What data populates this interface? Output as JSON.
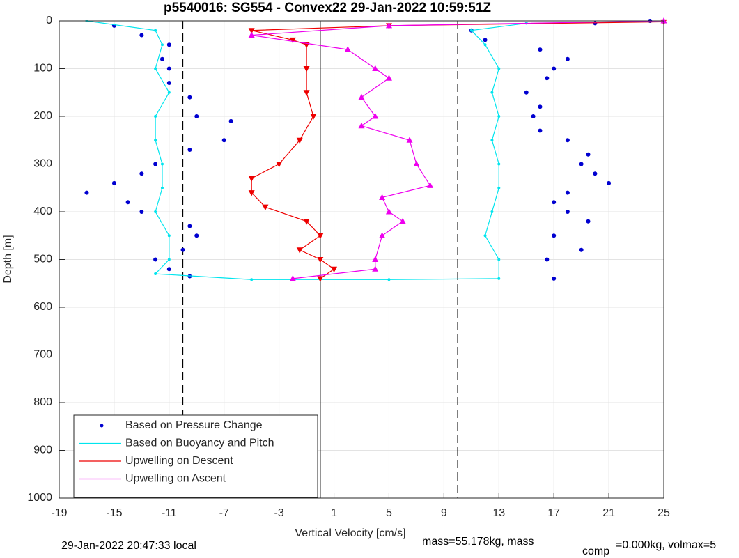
{
  "chart_data": {
    "type": "scatter",
    "title": "p5540016: SG554 - Convex22 29-Jan-2022 10:59:51Z",
    "x_label": "Vertical Velocity [cm/s]",
    "y_label": "Depth [m]",
    "footnote_time": "29-Jan-2022 20:47:33 local",
    "footnote_mass": "mass=55.178kg, mass",
    "footnote_sub": "comp",
    "footnote_rest": "=0.000kg, volmax=5",
    "xlim": [
      -19,
      25
    ],
    "xticks": [
      -19,
      -15,
      -11,
      -7,
      -3,
      1,
      5,
      9,
      13,
      17,
      21,
      25
    ],
    "ylim": [
      0,
      1000
    ],
    "yticks": [
      0,
      100,
      200,
      300,
      400,
      500,
      600,
      700,
      800,
      900,
      1000
    ],
    "y_reversed": true,
    "grid": true,
    "legend": "lower left",
    "reference_lines": [
      {
        "value": -10,
        "style": "dashed"
      },
      {
        "value": 0,
        "style": "solid"
      },
      {
        "value": 10,
        "style": "dashed"
      }
    ],
    "series": [
      {
        "name": "Based on Pressure Change",
        "color": "#0000d0",
        "marker": "dot",
        "x": [
          -15,
          -13,
          -11,
          -11.5,
          -11,
          -11,
          -9.5,
          -9,
          -6.5,
          -7,
          -9.5,
          -12,
          -13,
          -15,
          -17,
          -14,
          -13,
          -9.5,
          -9,
          -10,
          -12,
          -11,
          -9.5,
          17,
          16.5,
          19,
          17,
          19.5,
          18,
          17,
          18,
          21,
          20,
          19,
          19.5,
          18,
          16,
          15.5,
          16,
          15,
          16.5,
          17,
          18,
          16,
          12,
          11,
          20,
          24
        ],
        "y": [
          10,
          30,
          50,
          80,
          100,
          130,
          160,
          200,
          210,
          250,
          270,
          300,
          320,
          340,
          360,
          380,
          400,
          430,
          450,
          480,
          500,
          520,
          535,
          540,
          500,
          480,
          450,
          420,
          400,
          380,
          360,
          340,
          320,
          300,
          280,
          250,
          230,
          200,
          180,
          150,
          120,
          100,
          80,
          60,
          40,
          20,
          5,
          0
        ]
      },
      {
        "name": "Based on Buoyancy and Pitch",
        "color": "#00e5ee",
        "marker": "line",
        "x": [
          -17,
          -12,
          -11.5,
          -12,
          -11,
          -12,
          -12,
          -11.5,
          -11.5,
          -12,
          -11,
          -11,
          -12,
          -5,
          5,
          13,
          13,
          12,
          12.5,
          13,
          13,
          12.5,
          13,
          12.5,
          13,
          12,
          11,
          15
        ],
        "y": [
          0,
          20,
          50,
          100,
          150,
          200,
          250,
          300,
          350,
          400,
          450,
          500,
          530,
          542,
          542,
          540,
          500,
          450,
          400,
          350,
          300,
          250,
          200,
          150,
          100,
          50,
          20,
          5
        ]
      },
      {
        "name": "Upwelling on Descent",
        "color": "#ee0000",
        "marker": "tri-down",
        "x": [
          25,
          5,
          -5,
          -2,
          -1,
          -1,
          -1,
          -0.5,
          -1.5,
          -3,
          -5,
          -5,
          -4,
          -1,
          0,
          -1.5,
          0,
          1,
          0
        ],
        "y": [
          2,
          10,
          20,
          40,
          50,
          100,
          150,
          200,
          250,
          300,
          330,
          360,
          390,
          420,
          450,
          480,
          500,
          520,
          540
        ]
      },
      {
        "name": "Upwelling on Ascent",
        "color": "#ee00ee",
        "marker": "tri-up",
        "x": [
          -2,
          4,
          4,
          4.5,
          6,
          5,
          4.5,
          8,
          7,
          6.5,
          3,
          4,
          3,
          5,
          4,
          2,
          -5,
          5,
          25
        ],
        "y": [
          540,
          520,
          500,
          450,
          420,
          400,
          370,
          345,
          300,
          250,
          220,
          200,
          160,
          120,
          100,
          60,
          30,
          10,
          0
        ]
      }
    ]
  }
}
